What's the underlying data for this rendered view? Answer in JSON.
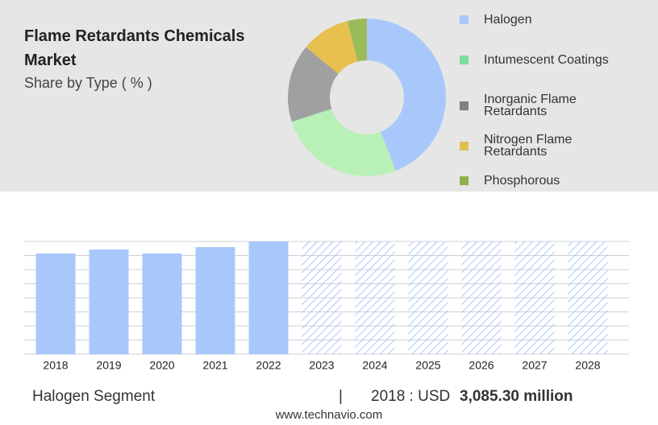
{
  "header": {
    "title": "Flame Retardants Chemicals Market",
    "subtitle": "Share by Type ( % )"
  },
  "chart_data": [
    {
      "type": "donut",
      "categories": [
        "Halogen",
        "Intumescent Coatings",
        "Inorganic Flame Retardants",
        "Nitrogen Flame Retardants",
        "Phosphorous"
      ],
      "values": [
        44,
        26,
        16,
        10,
        4
      ],
      "colors": [
        "#a8c8fb",
        "#b8f0b8",
        "#a0a0a0",
        "#e8c050",
        "#9bbb59"
      ],
      "legend_colors": [
        "#a8c8fb",
        "#80dca0",
        "#808080",
        "#e0c050",
        "#90b050"
      ]
    },
    {
      "type": "bar",
      "categories": [
        "2018",
        "2019",
        "2020",
        "2021",
        "2022",
        "2023",
        "2024",
        "2025",
        "2026",
        "2027",
        "2028"
      ],
      "values": [
        3085.3,
        3209,
        3085,
        3283,
        3455,
        null,
        null,
        null,
        null,
        null,
        null
      ],
      "color": "#a8c8fb",
      "forecast_pattern": "hatched",
      "ylim": [
        0,
        3455
      ],
      "grid": true
    }
  ],
  "footer": {
    "segment": "Halogen Segment",
    "separator": "|",
    "year_label": "2018 : USD",
    "value": "3,085.30 million",
    "site": "www.technavio.com"
  }
}
